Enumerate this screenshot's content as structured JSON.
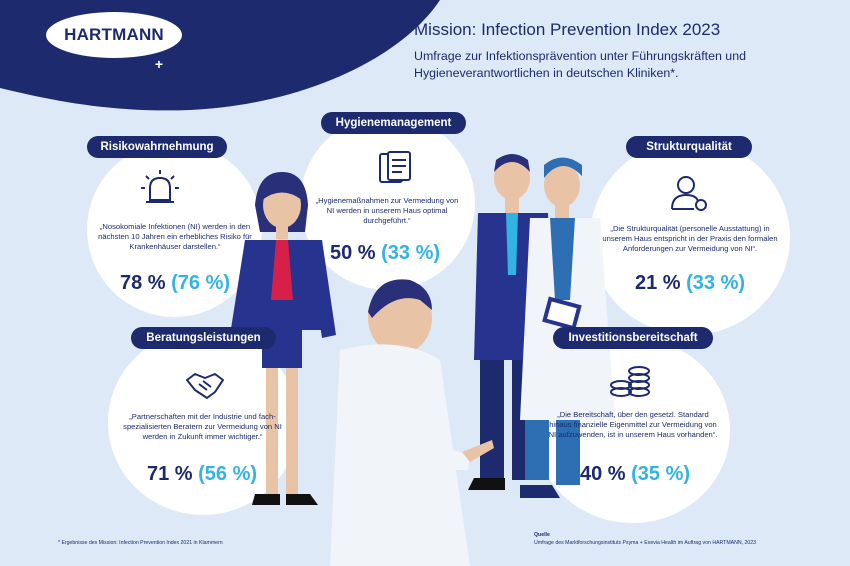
{
  "brand": {
    "logo_text": "HARTMANN",
    "logo_cross": "+"
  },
  "header": {
    "title": "Mission: Infection Prevention Index 2023",
    "subtitle": "Umfrage zur Infektionsprävention unter Führungskräften und Hygieneverantwortlichen in deutschen Kliniken*."
  },
  "cards": {
    "risk": {
      "label": "Risikowahrnehmung",
      "quote": "„Nosokomiale Infektionen (NI) werden in den nächsten 10 Jahren ein erhebliches Risiko für Krankenhäuser darstellen.“",
      "value": "78 %",
      "prev": "(76 %)",
      "icon": "alarm-siren-icon"
    },
    "hygiene": {
      "label": "Hygienemanagement",
      "quote": "„Hygienemaßnahmen zur Vermeidung von NI werden in unserem Haus optimal durchgeführt.“",
      "value": "50 %",
      "prev": "(33 %)",
      "icon": "clipboard-documents-icon"
    },
    "struktur": {
      "label": "Strukturqualität",
      "quote": "„Die Strukturqualität (personelle Ausstattung) in unserem Haus entspricht in der Praxis den formalen Anforderungen zur Vermeidung von NI“.",
      "value": "21 %",
      "prev": "(33 %)",
      "icon": "person-settings-icon"
    },
    "beratung": {
      "label": "Beratungsleistungen",
      "quote": "„Partnerschaften mit der Industrie und fach-spezialisierten Beratern zur Vermeidung von NI werden in Zukunft immer wichtiger.“",
      "value": "71 %",
      "prev": "(56 %)",
      "icon": "handshake-icon"
    },
    "invest": {
      "label": "Investitionsbereitschaft",
      "quote": "„Die Bereitschaft, über den gesetzl. Standard hinaus finanzielle Eigenmittel zur Vermeidung von NI aufzuwenden, ist in unserem Haus vorhanden“.",
      "value": "40 %",
      "prev": "(35 %)",
      "icon": "coin-stacks-icon"
    }
  },
  "footer": {
    "note": "* Ergebnisse des Mission: Infection Prevention Index 2021 in Klammern",
    "source_label": "Quelle",
    "source_text": "Umfrage des Marktforschungsinstituts Psyma + Exevia Health im Auftrag von HARTMANN, 2023"
  },
  "colors": {
    "navy": "#1d2b6e",
    "cyan": "#32b3e4",
    "background": "#dde9f6"
  }
}
